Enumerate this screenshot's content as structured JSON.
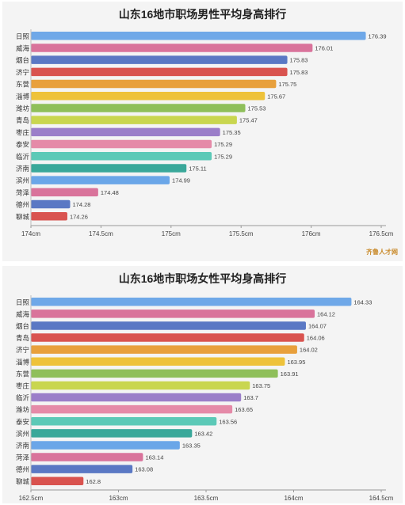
{
  "chart_data": [
    {
      "type": "bar",
      "orientation": "horizontal",
      "title": "山东16地市职场男性平均身高排行",
      "categories": [
        "日照",
        "威海",
        "烟台",
        "济宁",
        "东营",
        "淄博",
        "潍坊",
        "青岛",
        "枣庄",
        "泰安",
        "临沂",
        "济南",
        "滨州",
        "菏泽",
        "德州",
        "聊城"
      ],
      "values": [
        176.39,
        176.01,
        175.83,
        175.83,
        175.75,
        175.67,
        175.53,
        175.47,
        175.35,
        175.29,
        175.29,
        175.11,
        174.99,
        174.48,
        174.28,
        174.26
      ],
      "value_labels": [
        "176.39",
        "176.01",
        "175.83",
        "175.83",
        "175.75",
        "175.67",
        "175.53",
        "175.47",
        "175.35",
        "175.29",
        "175.29",
        "175.11",
        "174.99",
        "174.48",
        "174.28",
        "174.26"
      ],
      "xlim": [
        174,
        176.5
      ],
      "ticks": [
        174,
        174.5,
        175,
        175.5,
        176,
        176.5
      ],
      "tick_labels": [
        "174cm",
        "174.5cm",
        "175cm",
        "175.5cm",
        "176cm",
        "176.5cm"
      ],
      "colors": [
        "#6fa8e8",
        "#d9739b",
        "#5a78c4",
        "#d9534f",
        "#e8a03c",
        "#eec23a",
        "#8fbf5a",
        "#c9d64f",
        "#9b7ec9",
        "#e58aa8",
        "#5cc9b7",
        "#3aa89a",
        "#6aa6e8",
        "#d9739b",
        "#5a78c4",
        "#d9534f"
      ],
      "grid": false,
      "legend": "none"
    },
    {
      "type": "bar",
      "orientation": "horizontal",
      "title": "山东16地市职场女性平均身高排行",
      "categories": [
        "日照",
        "威海",
        "烟台",
        "青岛",
        "济宁",
        "淄博",
        "东营",
        "枣庄",
        "临沂",
        "潍坊",
        "泰安",
        "滨州",
        "济南",
        "菏泽",
        "德州",
        "聊城"
      ],
      "values": [
        164.33,
        164.12,
        164.07,
        164.06,
        164.02,
        163.95,
        163.91,
        163.75,
        163.7,
        163.65,
        163.56,
        163.42,
        163.35,
        163.14,
        163.08,
        162.8
      ],
      "value_labels": [
        "164.33",
        "164.12",
        "164.07",
        "164.06",
        "164.02",
        "163.95",
        "163.91",
        "163.75",
        "163.7",
        "163.65",
        "163.56",
        "163.42",
        "163.35",
        "163.14",
        "163.08",
        "162.8"
      ],
      "xlim": [
        162.5,
        164.5
      ],
      "ticks": [
        162.5,
        163,
        163.5,
        164,
        164.5
      ],
      "tick_labels": [
        "162.5cm",
        "163cm",
        "163.5cm",
        "164cm",
        "164.5cm"
      ],
      "colors": [
        "#6fa8e8",
        "#d9739b",
        "#5a78c4",
        "#d9534f",
        "#e8a03c",
        "#eec23a",
        "#8fbf5a",
        "#c9d64f",
        "#9b7ec9",
        "#e58aa8",
        "#5cc9b7",
        "#3aa89a",
        "#6aa6e8",
        "#d9739b",
        "#5a78c4",
        "#d9534f"
      ],
      "grid": false,
      "legend": "none"
    }
  ],
  "watermark": "齐鲁人才网"
}
